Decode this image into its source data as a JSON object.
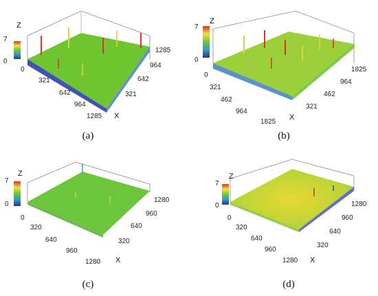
{
  "figure": {
    "panels": [
      {
        "caption": "(a)",
        "z_axis": {
          "label": "Z",
          "max_tick": "7",
          "min_tick": "0"
        },
        "x_axis": {
          "label": "X",
          "ticks": [
            "0",
            "321",
            "642",
            "964",
            "1285"
          ]
        },
        "y_axis": {
          "ticks": [
            "321",
            "642",
            "964",
            "1285"
          ]
        },
        "surface": {
          "base_color": "#6fc530",
          "peak_color": "#d8342a",
          "low_color": "#2b3fb0",
          "texture": "rough"
        }
      },
      {
        "caption": "(b)",
        "z_axis": {
          "label": "Z",
          "max_tick": "7",
          "min_tick": "0"
        },
        "x_axis": {
          "label": "X",
          "ticks": [
            "0",
            "321",
            "462",
            "964",
            "1825"
          ]
        },
        "y_axis": {
          "ticks": [
            "321",
            "462",
            "964",
            "1825"
          ]
        },
        "surface": {
          "base_color": "#9bd03a",
          "peak_color": "#d8342a",
          "low_color": "#2b3fb0",
          "texture": "rough"
        }
      },
      {
        "caption": "(c)",
        "z_axis": {
          "label": "Z",
          "max_tick": "7",
          "min_tick": "0"
        },
        "x_axis": {
          "label": "X",
          "ticks": [
            "0",
            "320",
            "640",
            "960",
            "1280"
          ]
        },
        "y_axis": {
          "ticks": [
            "320",
            "640",
            "960",
            "1280"
          ]
        },
        "surface": {
          "base_color": "#6cc53a",
          "peak_color": "#e3d23a",
          "low_color": "#3a8fd0",
          "texture": "smooth"
        }
      },
      {
        "caption": "(d)",
        "z_axis": {
          "label": "Z",
          "max_tick": "7",
          "min_tick": "0"
        },
        "x_axis": {
          "label": "X",
          "ticks": [
            "0",
            "320",
            "640",
            "960",
            "1280"
          ]
        },
        "y_axis": {
          "ticks": [
            "320",
            "640",
            "960",
            "1280"
          ]
        },
        "surface": {
          "base_color": "#a8d43a",
          "peak_color": "#e8d832",
          "low_color": "#2b3fb0",
          "texture": "mottled"
        }
      }
    ]
  }
}
